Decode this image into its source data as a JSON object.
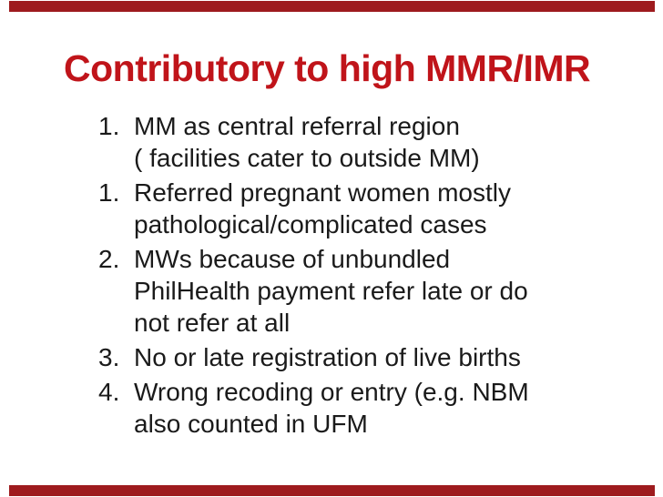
{
  "slide": {
    "title": "Contributory to high MMR/IMR",
    "list_items": [
      {
        "number": "1.",
        "lines": [
          "MM as central referral region",
          "( facilities cater to outside MM)"
        ]
      },
      {
        "number": "1.",
        "lines": [
          "Referred pregnant women mostly",
          "pathological/complicated cases"
        ]
      },
      {
        "number": "2.",
        "lines": [
          "MWs because of unbundled",
          "PhilHealth payment refer late or do",
          "not refer at all"
        ]
      },
      {
        "number": "3.",
        "lines": [
          "No or late registration of live births"
        ]
      },
      {
        "number": "4.",
        "lines": [
          "Wrong recoding or entry (e.g. NBM",
          "also counted in UFM"
        ]
      }
    ],
    "colors": {
      "title_red": "#C0141A",
      "border_bar_maroon": "#9E1B1E",
      "body_text": "#1A1A1A",
      "background": "#FFFFFF"
    }
  }
}
